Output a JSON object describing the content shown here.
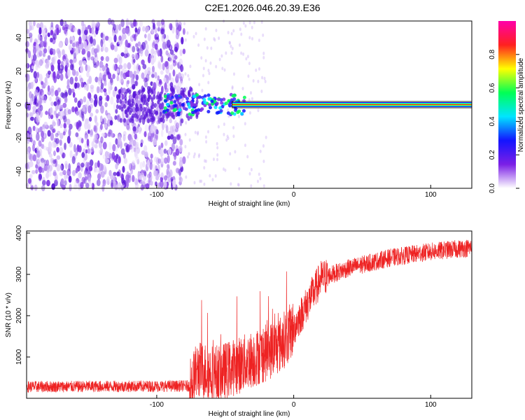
{
  "title": "C2E1.2026.046.20.39.E36",
  "chart_data": [
    {
      "type": "heatmap",
      "name": "spectrogram",
      "xlabel": "Height of straight line (km)",
      "ylabel": "Frequency (Hz)",
      "xlim": [
        -195,
        130
      ],
      "ylim": [
        -50,
        50
      ],
      "xticks": [
        -100,
        0,
        100
      ],
      "xtick_labels": [
        "-100",
        "0",
        "100"
      ],
      "yticks": [
        -40,
        -20,
        0,
        20,
        40
      ],
      "ytick_labels": [
        "-40",
        "-20",
        "0",
        "20",
        "40"
      ],
      "colorbar": {
        "label": "Normalized spectral amplitude",
        "range": [
          0,
          1
        ],
        "ticks": [
          0.0,
          0.2,
          0.4,
          0.6,
          0.8
        ],
        "tick_labels": [
          "0.0",
          "0.2",
          "0.4",
          "0.6",
          "0.8"
        ],
        "colors": [
          "#ffffff",
          "#7b1fe6",
          "#1414ff",
          "#00e5ff",
          "#00ff55",
          "#ffff00",
          "#ff2020",
          "#ff00aa"
        ]
      },
      "features": {
        "noise_region_x": [
          -195,
          -80
        ],
        "scatter_region_x": [
          -80,
          -20
        ],
        "carrier_frequency_hz": 0,
        "carrier_start_x": -45
      }
    },
    {
      "type": "line",
      "name": "snr",
      "xlabel": "Height of straight line (km)",
      "ylabel": "SNR (10 * v/v)",
      "xlim": [
        -195,
        130
      ],
      "ylim": [
        0,
        4050
      ],
      "xticks": [
        -100,
        0,
        100
      ],
      "xtick_labels": [
        "-100",
        "0",
        "100"
      ],
      "yticks": [
        1000,
        2000,
        3000,
        4000
      ],
      "ytick_labels": [
        "1000",
        "2000",
        "3000",
        "4000"
      ],
      "color": "#ee2222",
      "trend_points": [
        {
          "x": -195,
          "y": 280
        },
        {
          "x": -120,
          "y": 290
        },
        {
          "x": -76,
          "y": 300
        },
        {
          "x": -70,
          "y": 700
        },
        {
          "x": -55,
          "y": 600
        },
        {
          "x": -40,
          "y": 800
        },
        {
          "x": -20,
          "y": 1100
        },
        {
          "x": -10,
          "y": 1300
        },
        {
          "x": 0,
          "y": 1700
        },
        {
          "x": 10,
          "y": 2300
        },
        {
          "x": 20,
          "y": 2900
        },
        {
          "x": 40,
          "y": 3150
        },
        {
          "x": 70,
          "y": 3400
        },
        {
          "x": 100,
          "y": 3550
        },
        {
          "x": 130,
          "y": 3650
        }
      ]
    }
  ]
}
